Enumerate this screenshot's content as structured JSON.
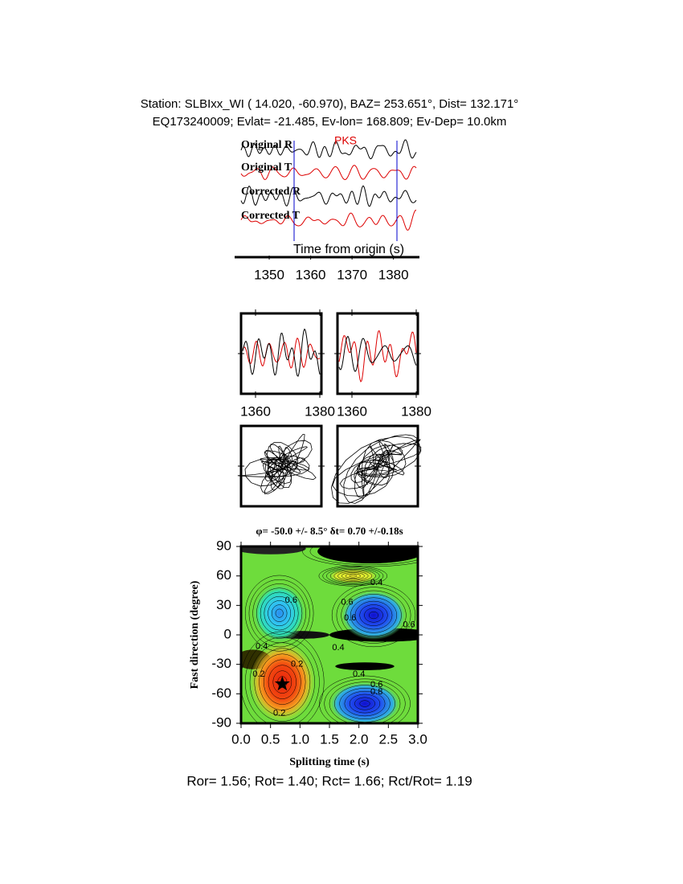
{
  "header": {
    "station": "Station: SLBIxx_WI (  14.020,  -60.970), BAZ=  253.651°, Dist=  132.171°",
    "event": "EQ173240009; Evlat= -21.485, Ev-lon= 168.809; Ev-Dep= 10.0km"
  },
  "seismograms": {
    "traces": [
      "Original R",
      "Original T",
      "Corrected R",
      "Corrected T"
    ],
    "phase": "PKS",
    "xlabel": "Time from origin (s)",
    "xlim": [
      1343.2,
      1385.5
    ],
    "xticks": [
      1350,
      1360,
      1370,
      1380
    ]
  },
  "waveform_panels": {
    "xlim": [
      1355.5,
      1380.5
    ],
    "xticks": [
      1360,
      1380
    ]
  },
  "grid_search": {
    "title": "φ= -50.0 +/- 8.5° δt= 0.70 +/-0.18s",
    "xlabel": "Splitting time (s)",
    "ylabel": "Fast direction (degree)",
    "xlim": [
      0,
      3
    ],
    "ylim": [
      -90,
      90
    ],
    "xticks": [
      {
        "value": 0,
        "label": "0.0"
      },
      0.5,
      {
        "value": 1,
        "label": "1.0"
      },
      1.5,
      {
        "value": 2,
        "label": "2.0"
      },
      2.5,
      {
        "value": 3,
        "label": "3.0"
      }
    ],
    "yticks": [
      -90,
      -60,
      -30,
      0,
      30,
      60,
      90
    ],
    "best": {
      "x": 0.7,
      "y": -50
    },
    "contour_labels": [
      "0.4",
      "0.4",
      "0.6",
      "0.6",
      "0.6",
      "0.6",
      "0.4",
      "0.4",
      "0.2",
      "0.2",
      "0.4",
      "0.6",
      "0.8",
      "0.2"
    ]
  },
  "footer": "Ror= 1.56; Rot= 1.40; Rct= 1.66; Rct/Rot= 1.19"
}
